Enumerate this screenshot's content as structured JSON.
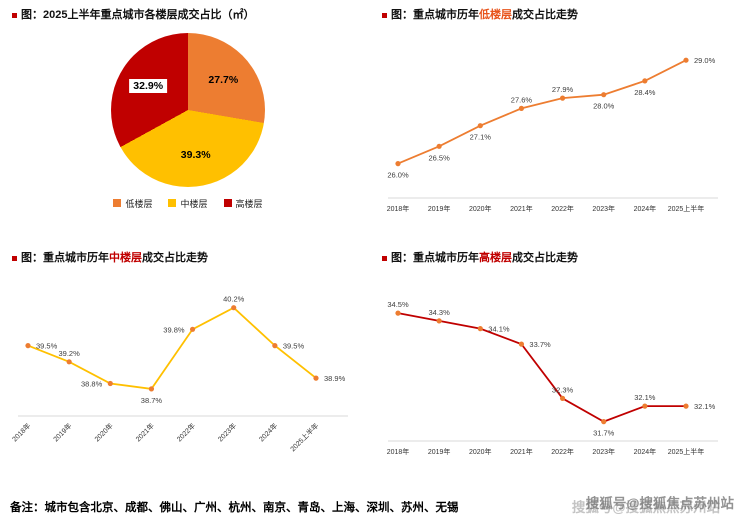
{
  "page": {
    "background": "#ffffff"
  },
  "chart_data": [
    {
      "type": "pie",
      "title_prefix": "图：",
      "title_highlight": "",
      "title_suffix": "2025上半年重点城市各楼层成交占比（㎡）",
      "title": "图：2025上半年重点城市各楼层成交占比（㎡）",
      "labels": [
        "低楼层",
        "中楼层",
        "高楼层"
      ],
      "values": [
        27.7,
        39.3,
        32.9
      ],
      "colors": [
        "#ED7D31",
        "#FFC000",
        "#C00000"
      ],
      "label_boxed": [
        false,
        false,
        true
      ],
      "legend_position": "bottom"
    },
    {
      "type": "line",
      "title_prefix": "图：重点城市历年",
      "title_highlight": "低楼层",
      "title_suffix": "成交占比走势",
      "highlight_color": "#E8541C",
      "categories": [
        "2018年",
        "2019年",
        "2020年",
        "2021年",
        "2022年",
        "2023年",
        "2024年",
        "2025上半年"
      ],
      "values": [
        26.0,
        26.5,
        27.1,
        27.6,
        27.9,
        28.0,
        28.4,
        29.0
      ],
      "unit": "%",
      "line_color": "#ED7D31",
      "marker_color": "#ED7D31",
      "ylim": [
        25.0,
        29.5
      ],
      "label_sides": [
        "below",
        "below",
        "below",
        "above",
        "above",
        "below",
        "below",
        "right"
      ],
      "grid": false
    },
    {
      "type": "line",
      "title_prefix": "图：重点城市历年",
      "title_highlight": "中楼层",
      "title_suffix": "成交占比走势",
      "highlight_color": "#C00000",
      "categories": [
        "2018年",
        "2019年",
        "2020年",
        "2021年",
        "2022年",
        "2023年",
        "2024年",
        "2025上半年"
      ],
      "values": [
        39.5,
        39.2,
        38.8,
        38.7,
        39.8,
        40.2,
        39.5,
        38.9
      ],
      "unit": "%",
      "line_color": "#FFC000",
      "marker_color": "#ED7D31",
      "ylim": [
        38.2,
        40.6
      ],
      "label_sides": [
        "right",
        "above",
        "left",
        "below",
        "left",
        "above",
        "right",
        "right"
      ],
      "grid": false
    },
    {
      "type": "line",
      "title_prefix": "图：重点城市历年",
      "title_highlight": "高楼层",
      "title_suffix": "成交占比走势",
      "highlight_color": "#C00000",
      "categories": [
        "2018年",
        "2019年",
        "2020年",
        "2021年",
        "2022年",
        "2023年",
        "2024年",
        "2025上半年"
      ],
      "values": [
        34.5,
        34.3,
        34.1,
        33.7,
        32.3,
        31.7,
        32.1,
        32.1
      ],
      "unit": "%",
      "line_color": "#C00000",
      "marker_color": "#ED7D31",
      "ylim": [
        31.2,
        35.2
      ],
      "label_sides": [
        "above",
        "above",
        "right",
        "right",
        "above",
        "below",
        "above",
        "right"
      ],
      "grid": false
    }
  ],
  "footer": {
    "note": "备注：城市包含北京、成都、佛山、广州、杭州、南京、青岛、上海、深圳、苏州、无锡",
    "watermark": "搜狐号@搜狐焦点苏州站"
  }
}
